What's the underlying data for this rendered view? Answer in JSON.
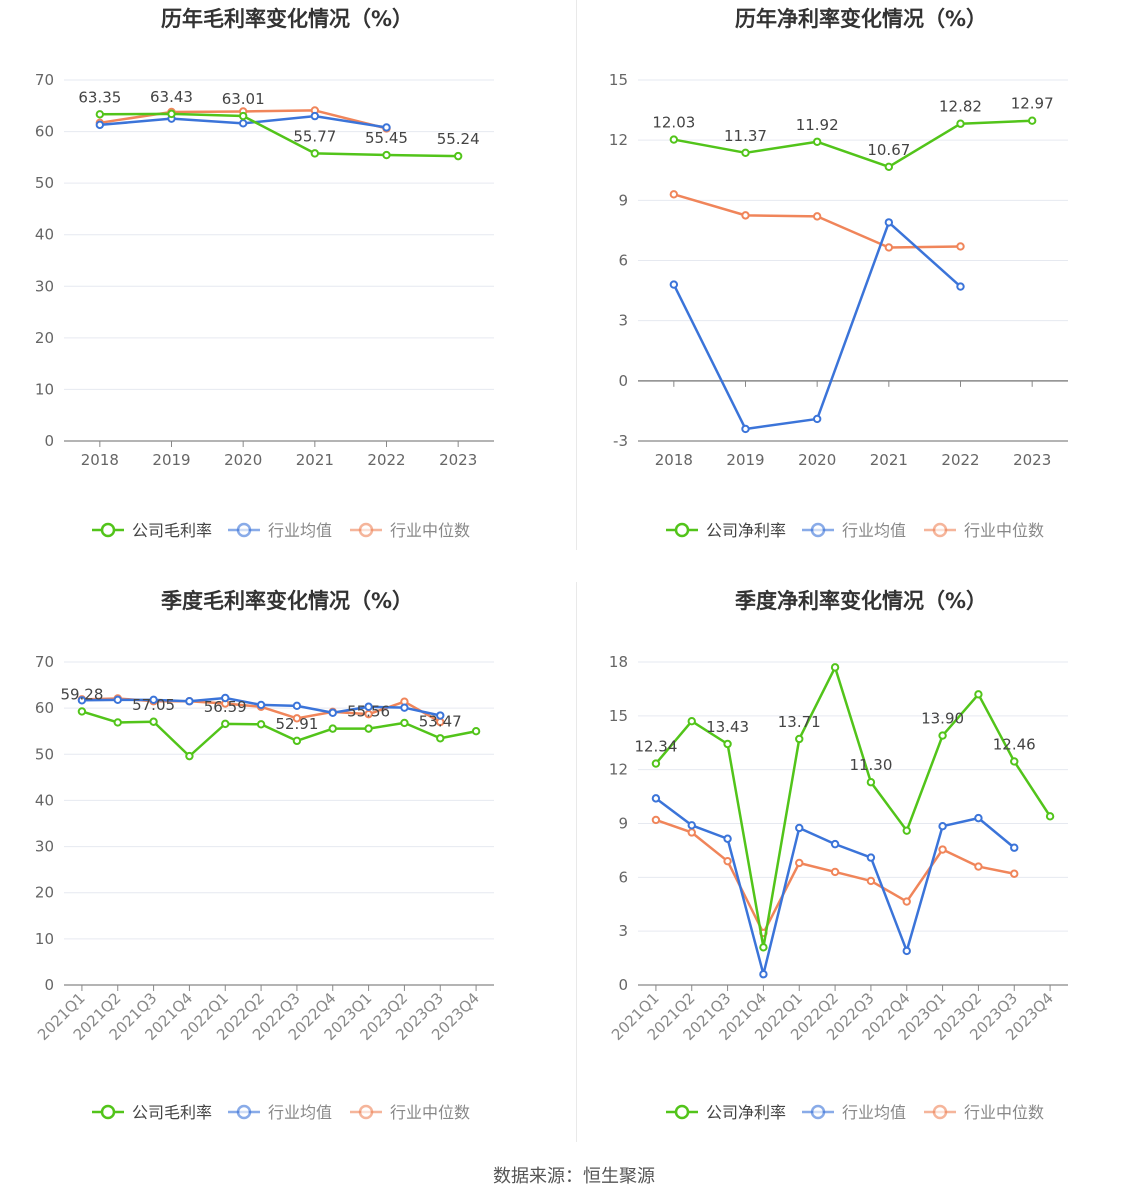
{
  "source_label": "数据来源：恒生聚源",
  "colors": {
    "company": "#52c41a",
    "avg": "#3b74d9",
    "median": "#f0855a"
  },
  "chart_data": [
    {
      "id": "annual-gross",
      "type": "line",
      "title": "历年毛利率变化情况（%）",
      "categories": [
        "2018",
        "2019",
        "2020",
        "2021",
        "2022",
        "2023"
      ],
      "ylim": [
        0,
        70
      ],
      "yticks": [
        0,
        10,
        20,
        30,
        40,
        50,
        60,
        70
      ],
      "rotate_x": false,
      "series": [
        {
          "name": "公司毛利率",
          "key": "company",
          "values": [
            63.35,
            63.43,
            63.01,
            55.77,
            55.45,
            55.24
          ],
          "labels": [
            "63.35",
            "63.43",
            "63.01",
            "55.77",
            "55.45",
            "55.24"
          ]
        },
        {
          "name": "行业均值",
          "key": "avg",
          "values": [
            61.3,
            62.5,
            61.6,
            63.0,
            60.8,
            null
          ]
        },
        {
          "name": "行业中位数",
          "key": "median",
          "values": [
            61.7,
            63.8,
            63.9,
            64.1,
            60.6,
            null
          ]
        }
      ]
    },
    {
      "id": "annual-net",
      "type": "line",
      "title": "历年净利率变化情况（%）",
      "categories": [
        "2018",
        "2019",
        "2020",
        "2021",
        "2022",
        "2023"
      ],
      "ylim": [
        -3,
        15
      ],
      "yticks": [
        -3,
        0,
        3,
        6,
        9,
        12,
        15
      ],
      "rotate_x": false,
      "series": [
        {
          "name": "公司净利率",
          "key": "company",
          "values": [
            12.03,
            11.37,
            11.92,
            10.67,
            12.82,
            12.97
          ],
          "labels": [
            "12.03",
            "11.37",
            "11.92",
            "10.67",
            "12.82",
            "12.97"
          ]
        },
        {
          "name": "行业均值",
          "key": "avg",
          "values": [
            4.8,
            -2.4,
            -1.9,
            7.9,
            4.7,
            null
          ]
        },
        {
          "name": "行业中位数",
          "key": "median",
          "values": [
            9.3,
            8.25,
            8.2,
            6.65,
            6.7,
            null
          ]
        }
      ]
    },
    {
      "id": "quarterly-gross",
      "type": "line",
      "title": "季度毛利率变化情况（%）",
      "categories": [
        "2021Q1",
        "2021Q2",
        "2021Q3",
        "2021Q4",
        "2022Q1",
        "2022Q2",
        "2022Q3",
        "2022Q4",
        "2023Q1",
        "2023Q2",
        "2023Q3",
        "2023Q4"
      ],
      "ylim": [
        0,
        70
      ],
      "yticks": [
        0,
        10,
        20,
        30,
        40,
        50,
        60,
        70
      ],
      "rotate_x": true,
      "series": [
        {
          "name": "公司毛利率",
          "key": "company",
          "values": [
            59.28,
            56.9,
            57.05,
            49.6,
            56.59,
            56.5,
            52.91,
            55.56,
            55.56,
            56.8,
            53.47,
            55.0
          ],
          "labels": [
            "59.28",
            null,
            "57.05",
            null,
            "56.59",
            null,
            "52.91",
            null,
            "55.56",
            null,
            "53.47",
            null
          ]
        },
        {
          "name": "行业均值",
          "key": "avg",
          "values": [
            61.7,
            61.8,
            61.8,
            61.5,
            62.2,
            60.7,
            60.5,
            59.0,
            60.3,
            60.1,
            58.4,
            null
          ]
        },
        {
          "name": "行业中位数",
          "key": "median",
          "values": [
            61.9,
            62.1,
            61.5,
            61.5,
            61.0,
            60.3,
            57.8,
            59.2,
            58.7,
            61.4,
            57.0,
            null
          ]
        }
      ]
    },
    {
      "id": "quarterly-net",
      "type": "line",
      "title": "季度净利率变化情况（%）",
      "categories": [
        "2021Q1",
        "2021Q2",
        "2021Q3",
        "2021Q4",
        "2022Q1",
        "2022Q2",
        "2022Q3",
        "2022Q4",
        "2023Q1",
        "2023Q2",
        "2023Q3",
        "2023Q4"
      ],
      "ylim": [
        0,
        18
      ],
      "yticks": [
        0,
        3,
        6,
        9,
        12,
        15,
        18
      ],
      "rotate_x": true,
      "series": [
        {
          "name": "公司净利率",
          "key": "company",
          "values": [
            12.34,
            14.7,
            13.43,
            2.1,
            13.71,
            17.7,
            11.3,
            8.6,
            13.9,
            16.2,
            12.46,
            9.4
          ],
          "labels": [
            "12.34",
            null,
            "13.43",
            null,
            "13.71",
            null,
            "11.30",
            null,
            "13.90",
            null,
            "12.46",
            null
          ]
        },
        {
          "name": "行业均值",
          "key": "avg",
          "values": [
            10.4,
            8.9,
            8.15,
            0.6,
            8.75,
            7.85,
            7.1,
            1.9,
            8.85,
            9.3,
            7.65,
            null
          ]
        },
        {
          "name": "行业中位数",
          "key": "median",
          "values": [
            9.2,
            8.5,
            6.9,
            2.9,
            6.8,
            6.3,
            5.8,
            4.65,
            7.55,
            6.6,
            6.2,
            null
          ]
        }
      ]
    }
  ]
}
